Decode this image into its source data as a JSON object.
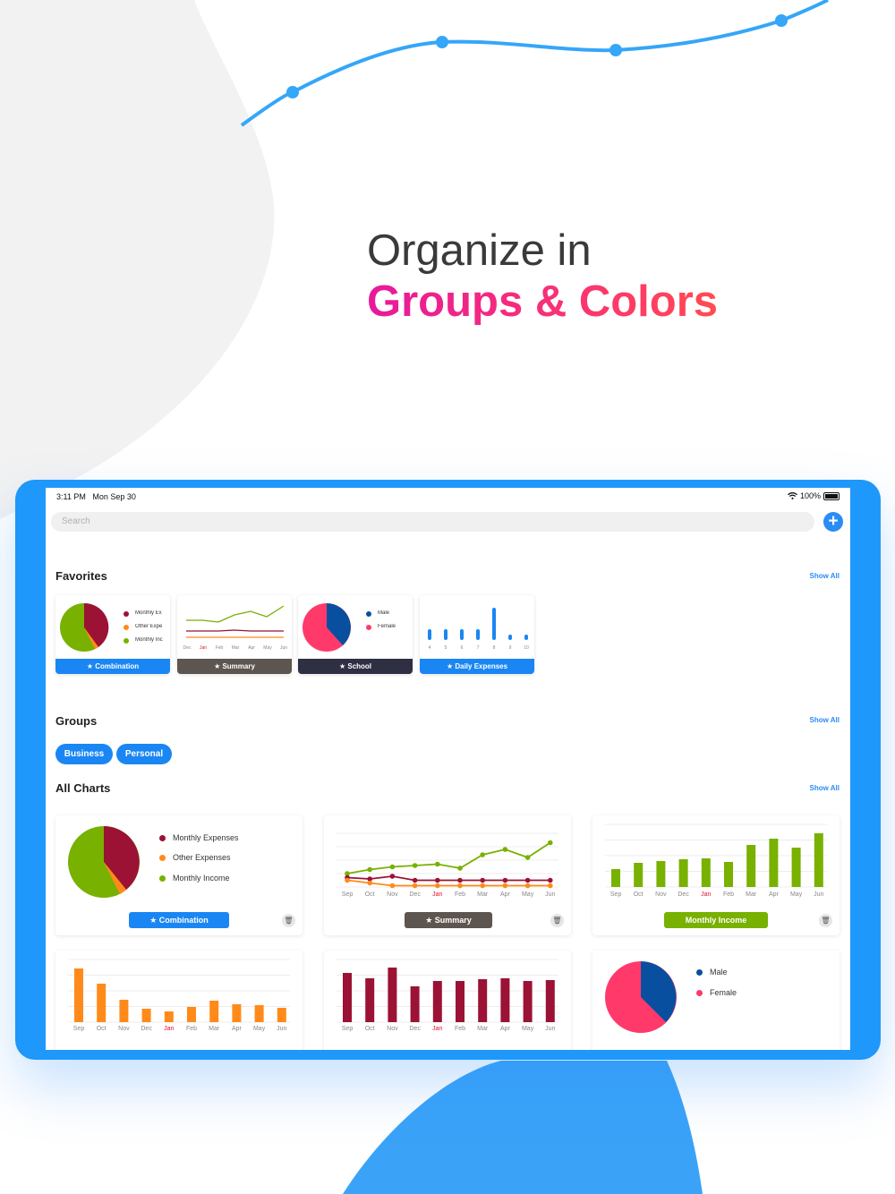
{
  "headline": {
    "line1": "Organize in",
    "line2": "Groups & Colors"
  },
  "colors": {
    "accent": "#1a86f3",
    "device": "#1e98fa",
    "wine": "#9b1235",
    "green": "#78b100",
    "orange": "#ff8a1a",
    "pink": "#ff3a6b",
    "navy": "#08509f",
    "slate": "#2f2f44",
    "taupe": "#5d554f"
  },
  "status": {
    "time": "3:11 PM",
    "date": "Mon Sep 30",
    "battery": "100%"
  },
  "search": {
    "placeholder": "Search"
  },
  "add_icon": "plus-circle-icon",
  "favorites": {
    "title": "Favorites",
    "show_all": "Show All",
    "cards": [
      {
        "label": "★ Combination",
        "color": "#1a86f3",
        "legend": [
          "Monthly Ex",
          "Other Expe",
          "Monthly Inc"
        ]
      },
      {
        "label": "★ Summary",
        "color": "#5d554f",
        "months": [
          "Dec",
          "Jan",
          "Feb",
          "Mar",
          "Apr",
          "May",
          "Jun"
        ]
      },
      {
        "label": "★ School",
        "color": "#2f2f44",
        "legend": [
          "Male",
          "Female"
        ]
      },
      {
        "label": "★ Daily Expenses",
        "color": "#1a86f3",
        "days": [
          "4",
          "5",
          "6",
          "7",
          "8",
          "9",
          "10"
        ],
        "values": [
          2,
          2,
          2,
          2,
          6,
          1,
          1
        ]
      }
    ]
  },
  "groups": {
    "title": "Groups",
    "show_all": "Show All",
    "items": [
      "Business",
      "Personal"
    ]
  },
  "all_charts": {
    "title": "All Charts",
    "show_all": "Show All",
    "months": [
      "Sep",
      "Oct",
      "Nov",
      "Dec",
      "Jan",
      "Feb",
      "Mar",
      "Apr",
      "May",
      "Jun"
    ],
    "cards": [
      {
        "label": "★ Combination",
        "color": "#1a86f3",
        "legend": [
          "Monthly Expenses",
          "Other Expenses",
          "Monthly Income"
        ]
      },
      {
        "label": "★ Summary",
        "color": "#5d554f"
      },
      {
        "label": "Monthly Income",
        "color": "#78b100"
      },
      {
        "label": "",
        "color": "#ff8a1a"
      },
      {
        "label": "",
        "color": "#9b1235"
      },
      {
        "label": "",
        "color": "#2f2f44",
        "legend": [
          "Male",
          "Female"
        ]
      }
    ]
  },
  "chart_data": [
    {
      "type": "pie",
      "title": "",
      "labels": [
        "Monthly Expenses",
        "Other Expenses",
        "Monthly Income"
      ],
      "values": [
        38,
        5,
        57
      ],
      "colors": [
        "#9b1235",
        "#ff8a1a",
        "#78b100"
      ]
    },
    {
      "type": "line",
      "title": "",
      "categories": [
        "Sep",
        "Oct",
        "Nov",
        "Dec",
        "Jan",
        "Feb",
        "Mar",
        "Apr",
        "May",
        "Jun"
      ],
      "series": [
        {
          "values": [
            10,
            13,
            15,
            16,
            17,
            14,
            24,
            28,
            22,
            33
          ],
          "color": "#78b100"
        },
        {
          "values": [
            7,
            6,
            8,
            5,
            5,
            5,
            5,
            5,
            5,
            5
          ],
          "color": "#9b1235"
        },
        {
          "values": [
            5,
            3,
            1,
            1,
            1,
            1,
            1,
            1,
            1,
            1
          ],
          "color": "#ff8a1a"
        }
      ],
      "ylim": [
        0,
        40
      ]
    },
    {
      "type": "bar",
      "title": "",
      "categories": [
        "Sep",
        "Oct",
        "Nov",
        "Dec",
        "Jan",
        "Feb",
        "Mar",
        "Apr",
        "May",
        "Jun"
      ],
      "values": [
        20,
        27,
        29,
        31,
        32,
        28,
        47,
        54,
        44,
        60
      ],
      "color": "#78b100",
      "ylim": [
        0,
        70
      ]
    },
    {
      "type": "bar",
      "title": "",
      "categories": [
        "Sep",
        "Oct",
        "Nov",
        "Dec",
        "Jan",
        "Feb",
        "Mar",
        "Apr",
        "May",
        "Jun"
      ],
      "values": [
        60,
        43,
        25,
        15,
        12,
        17,
        24,
        20,
        19,
        16
      ],
      "color": "#ff8a1a",
      "ylim": [
        0,
        70
      ]
    },
    {
      "type": "bar",
      "title": "",
      "categories": [
        "Sep",
        "Oct",
        "Nov",
        "Dec",
        "Jan",
        "Feb",
        "Mar",
        "Apr",
        "May",
        "Jun"
      ],
      "values": [
        55,
        49,
        61,
        40,
        46,
        46,
        48,
        49,
        46,
        47
      ],
      "color": "#9b1235",
      "ylim": [
        0,
        70
      ]
    },
    {
      "type": "pie",
      "title": "",
      "labels": [
        "Male",
        "Female"
      ],
      "values": [
        38,
        62
      ],
      "colors": [
        "#08509f",
        "#ff3a6b"
      ]
    }
  ]
}
